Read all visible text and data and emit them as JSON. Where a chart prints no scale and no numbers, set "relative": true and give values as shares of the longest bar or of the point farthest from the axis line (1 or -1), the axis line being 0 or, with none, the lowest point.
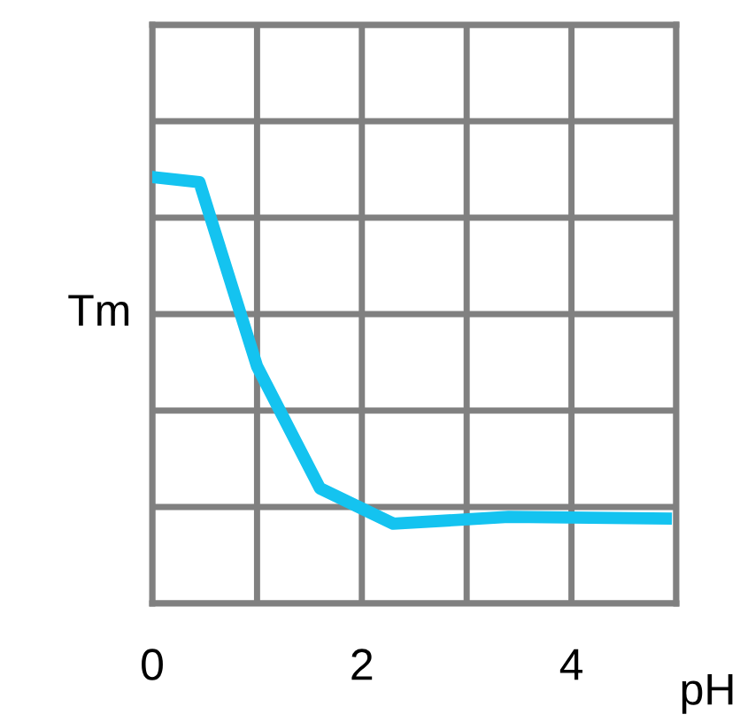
{
  "chart_data": {
    "type": "line",
    "relative": true,
    "xlabel": "pH",
    "ylabel": "Tm",
    "x": [
      0,
      0.45,
      1,
      1.6,
      2.3,
      3.4,
      4.9
    ],
    "series": [
      {
        "color": "#14c3f0",
        "values": [
          1,
          0.988,
          0.556,
          0.27,
          0.187,
          0.203,
          0.199
        ]
      }
    ],
    "xlim": [
      0,
      5
    ],
    "xticks": [
      0,
      {
        "value": 1,
        "label": null
      },
      2,
      {
        "value": 3,
        "label": null
      },
      4,
      {
        "value": 5,
        "label": null
      }
    ],
    "grid": true,
    "marker": "none",
    "line_style": "solid"
  }
}
